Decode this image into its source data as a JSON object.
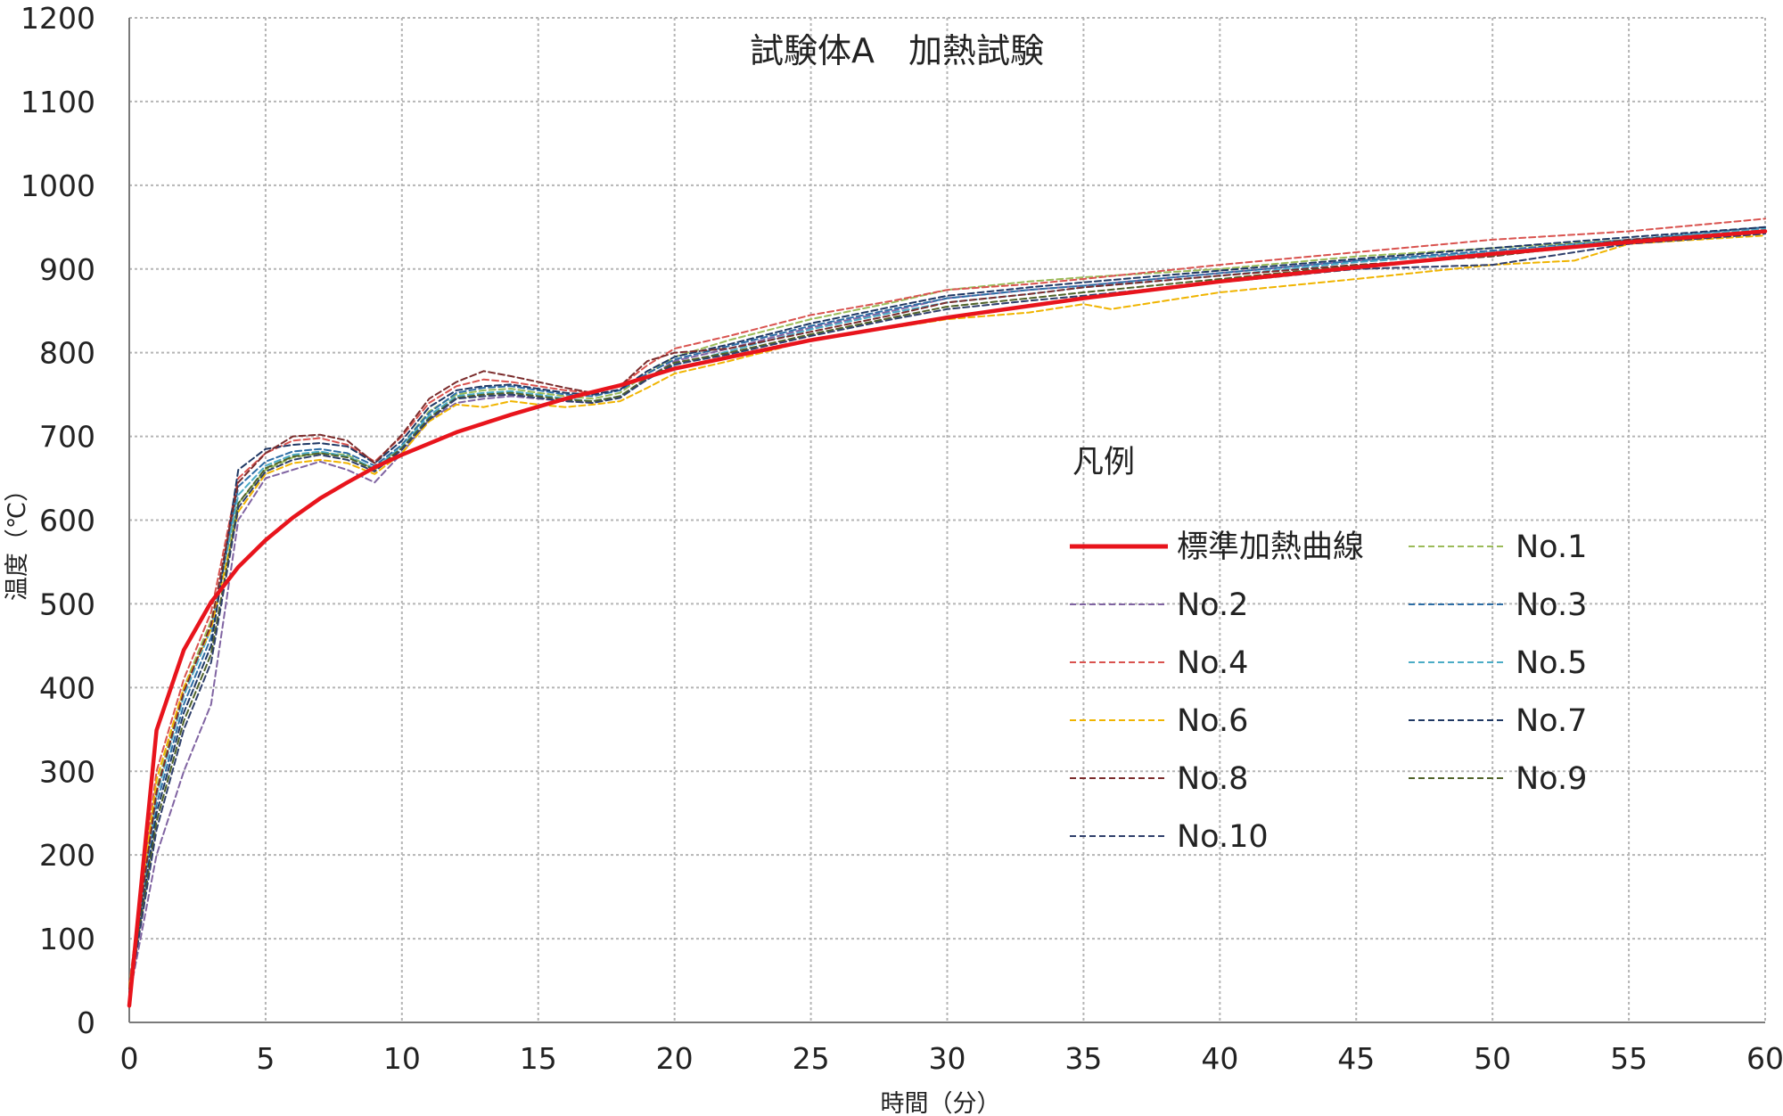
{
  "chart_data": {
    "type": "line",
    "title": "試験体A　加熱試験",
    "xlabel": "時間（分）",
    "ylabel": "温度（℃）",
    "xlim": [
      0,
      60
    ],
    "ylim": [
      0,
      1200
    ],
    "xticks": [
      0,
      5,
      10,
      15,
      20,
      25,
      30,
      35,
      40,
      45,
      50,
      55,
      60
    ],
    "yticks": [
      0,
      100,
      200,
      300,
      400,
      500,
      600,
      700,
      800,
      900,
      1000,
      1100,
      1200
    ],
    "grid": true,
    "legend_title": "凡例",
    "legend_position": "center-right",
    "series": [
      {
        "name": "標準加熱曲線",
        "color": "#e8141c",
        "style": "solid",
        "x": [
          0,
          1,
          2,
          3,
          4,
          5,
          6,
          7,
          8,
          9,
          10,
          12,
          14,
          16,
          18,
          20,
          25,
          30,
          35,
          40,
          45,
          50,
          55,
          60
        ],
        "y": [
          20,
          349,
          445,
          502,
          544,
          576,
          603,
          626,
          645,
          663,
          678,
          705,
          726,
          745,
          761,
          781,
          815,
          842,
          865,
          885,
          902,
          918,
          932,
          945
        ]
      },
      {
        "name": "No.1",
        "color": "#9bbb59",
        "style": "dashed",
        "x": [
          0,
          1,
          2,
          3,
          4,
          5,
          6,
          7,
          8,
          9,
          10,
          11,
          12,
          13,
          14,
          15,
          16,
          17,
          18,
          19,
          20,
          22,
          25,
          28,
          30,
          33,
          35,
          40,
          45,
          50,
          55,
          60
        ],
        "y": [
          40,
          280,
          400,
          480,
          620,
          660,
          675,
          680,
          678,
          660,
          690,
          730,
          750,
          755,
          757,
          752,
          748,
          745,
          752,
          775,
          795,
          815,
          840,
          860,
          875,
          885,
          890,
          900,
          915,
          925,
          935,
          945
        ]
      },
      {
        "name": "No.2",
        "color": "#8064a2",
        "style": "dashed",
        "x": [
          0,
          1,
          2,
          3,
          4,
          5,
          6,
          7,
          8,
          9,
          10,
          11,
          12,
          13,
          14,
          15,
          16,
          17,
          18,
          19,
          20,
          22,
          25,
          28,
          30,
          33,
          35,
          40,
          45,
          50,
          55,
          60
        ],
        "y": [
          30,
          200,
          300,
          380,
          600,
          650,
          660,
          670,
          660,
          645,
          680,
          720,
          740,
          745,
          748,
          745,
          742,
          740,
          748,
          770,
          790,
          805,
          830,
          850,
          865,
          875,
          880,
          895,
          910,
          920,
          935,
          945
        ]
      },
      {
        "name": "No.3",
        "color": "#2e6ea6",
        "style": "dashed",
        "x": [
          0,
          1,
          2,
          3,
          4,
          5,
          6,
          7,
          8,
          9,
          10,
          11,
          12,
          13,
          14,
          15,
          16,
          17,
          18,
          19,
          20,
          22,
          25,
          28,
          30,
          33,
          35,
          40,
          45,
          50,
          55,
          60
        ],
        "y": [
          35,
          260,
          380,
          460,
          640,
          670,
          682,
          685,
          680,
          665,
          690,
          728,
          752,
          758,
          760,
          755,
          750,
          748,
          755,
          775,
          792,
          808,
          832,
          852,
          865,
          875,
          880,
          895,
          910,
          922,
          935,
          950
        ]
      },
      {
        "name": "No.4",
        "color": "#d9534f",
        "style": "dashed",
        "x": [
          0,
          1,
          2,
          3,
          4,
          5,
          6,
          7,
          8,
          9,
          10,
          11,
          12,
          13,
          14,
          15,
          16,
          17,
          18,
          19,
          20,
          22,
          25,
          28,
          30,
          33,
          35,
          40,
          45,
          50,
          55,
          60
        ],
        "y": [
          45,
          300,
          410,
          490,
          650,
          680,
          695,
          698,
          690,
          670,
          700,
          740,
          760,
          768,
          765,
          760,
          755,
          752,
          760,
          785,
          805,
          820,
          845,
          862,
          875,
          882,
          888,
          905,
          920,
          935,
          945,
          960
        ]
      },
      {
        "name": "No.5",
        "color": "#4bacc6",
        "style": "dashed",
        "x": [
          0,
          1,
          2,
          3,
          4,
          5,
          6,
          7,
          8,
          9,
          10,
          11,
          12,
          13,
          14,
          15,
          16,
          17,
          18,
          19,
          20,
          22,
          25,
          28,
          30,
          33,
          35,
          40,
          45,
          50,
          55,
          60
        ],
        "y": [
          38,
          270,
          390,
          470,
          630,
          665,
          678,
          682,
          676,
          662,
          688,
          725,
          748,
          752,
          754,
          750,
          745,
          742,
          748,
          768,
          785,
          802,
          828,
          848,
          860,
          870,
          878,
          892,
          908,
          920,
          935,
          948
        ]
      },
      {
        "name": "No.6",
        "color": "#f0b400",
        "style": "dashed",
        "x": [
          0,
          1,
          2,
          3,
          4,
          5,
          6,
          7,
          8,
          9,
          10,
          11,
          12,
          13,
          14,
          15,
          16,
          17,
          18,
          19,
          20,
          22,
          25,
          28,
          30,
          33,
          35,
          36,
          40,
          45,
          50,
          53,
          55,
          60
        ],
        "y": [
          42,
          290,
          400,
          470,
          610,
          655,
          668,
          672,
          668,
          655,
          680,
          718,
          738,
          735,
          742,
          738,
          735,
          738,
          742,
          758,
          775,
          790,
          815,
          830,
          840,
          848,
          858,
          852,
          872,
          888,
          905,
          910,
          930,
          940
        ]
      },
      {
        "name": "No.7",
        "color": "#1f3864",
        "style": "dashed",
        "x": [
          0,
          1,
          2,
          3,
          4,
          5,
          6,
          7,
          8,
          9,
          10,
          11,
          12,
          13,
          14,
          15,
          16,
          17,
          18,
          19,
          20,
          22,
          25,
          28,
          30,
          33,
          35,
          40,
          45,
          50,
          55,
          60
        ],
        "y": [
          36,
          250,
          370,
          450,
          660,
          685,
          690,
          692,
          688,
          668,
          695,
          735,
          755,
          760,
          762,
          757,
          752,
          750,
          756,
          778,
          795,
          810,
          835,
          855,
          868,
          878,
          884,
          898,
          912,
          925,
          938,
          950
        ]
      },
      {
        "name": "No.8",
        "color": "#7b2c2c",
        "style": "dashed",
        "x": [
          0,
          1,
          2,
          3,
          4,
          5,
          6,
          7,
          8,
          9,
          10,
          11,
          12,
          13,
          14,
          15,
          16,
          17,
          18,
          19,
          20,
          22,
          25,
          28,
          30,
          33,
          35,
          40,
          45,
          50,
          55,
          60
        ],
        "y": [
          40,
          275,
          395,
          475,
          645,
          680,
          700,
          702,
          695,
          668,
          702,
          745,
          765,
          778,
          772,
          765,
          758,
          752,
          760,
          790,
          800,
          805,
          825,
          845,
          860,
          870,
          878,
          892,
          905,
          915,
          935,
          945
        ]
      },
      {
        "name": "No.9",
        "color": "#4f6228",
        "style": "dashed",
        "x": [
          0,
          1,
          2,
          3,
          4,
          5,
          6,
          7,
          8,
          9,
          10,
          11,
          12,
          13,
          14,
          15,
          16,
          17,
          18,
          19,
          20,
          22,
          25,
          28,
          30,
          33,
          35,
          40,
          45,
          50,
          55,
          60
        ],
        "y": [
          34,
          240,
          360,
          440,
          620,
          662,
          676,
          680,
          675,
          660,
          686,
          722,
          746,
          750,
          752,
          748,
          744,
          742,
          748,
          770,
          788,
          800,
          822,
          842,
          855,
          865,
          872,
          888,
          904,
          916,
          932,
          944
        ]
      },
      {
        "name": "No.10",
        "color": "#2f3f6b",
        "style": "dashed",
        "x": [
          0,
          1,
          2,
          3,
          4,
          5,
          6,
          7,
          8,
          9,
          10,
          11,
          12,
          13,
          14,
          15,
          16,
          17,
          18,
          19,
          20,
          22,
          25,
          28,
          30,
          33,
          35,
          40,
          45,
          50,
          51,
          55,
          60
        ],
        "y": [
          32,
          230,
          350,
          430,
          615,
          658,
          672,
          678,
          672,
          658,
          684,
          720,
          745,
          748,
          750,
          746,
          742,
          740,
          746,
          768,
          786,
          798,
          820,
          840,
          852,
          862,
          868,
          884,
          900,
          905,
          910,
          930,
          942
        ]
      }
    ]
  }
}
